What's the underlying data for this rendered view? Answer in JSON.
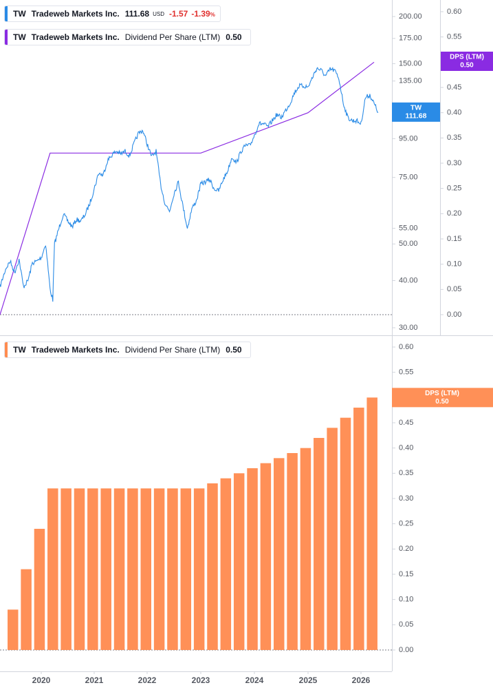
{
  "legend_price": {
    "symbol": "TW",
    "name": "Tradeweb Markets Inc.",
    "price": "111.68",
    "currency": "USD",
    "change": "-1.57",
    "change_pct": "-1.39",
    "pct_sign": "%",
    "color": "#2a8be6"
  },
  "legend_dps_top": {
    "symbol": "TW",
    "name": "Tradeweb Markets Inc.",
    "metric": "Dividend Per Share (LTM)",
    "value": "0.50",
    "color": "#8a2be2"
  },
  "legend_dps_bottom": {
    "symbol": "TW",
    "name": "Tradeweb Markets Inc.",
    "metric": "Dividend Per Share (LTM)",
    "value": "0.50",
    "color": "#ff8c50"
  },
  "badges": {
    "price_symbol": "TW",
    "price_value": "111.68",
    "dps_top_title": "DPS (LTM)",
    "dps_top_value": "0.50",
    "dps_bottom_title": "DPS (LTM)",
    "dps_bottom_value": "0.50"
  },
  "colors": {
    "price_line": "#2a8be6",
    "dps_line": "#8a2be2",
    "bars": "#ff9057",
    "axis_text": "#545861",
    "grid_line": "#d1d4dc",
    "zero_line": "#787b86"
  },
  "chart_data": [
    {
      "type": "line",
      "name": "Tradeweb Markets Inc.",
      "y_scale": "log",
      "ylim": [
        29,
        230
      ],
      "y_ticks": [
        "200.00",
        "175.00",
        "150.00",
        "135.00",
        "95.00",
        "75.00",
        "55.00",
        "50.00",
        "40.00",
        "30.00"
      ],
      "x_ticks": [
        "2020",
        "2021",
        "2022",
        "2023",
        "2024",
        "2025",
        "2026"
      ],
      "points": [
        [
          "2019-04",
          38.5
        ],
        [
          "2019-05",
          43.0
        ],
        [
          "2019-06",
          45.0
        ],
        [
          "2019-07",
          42.0
        ],
        [
          "2019-08",
          45.5
        ],
        [
          "2019-09",
          38.5
        ],
        [
          "2019-10",
          40.0
        ],
        [
          "2019-11",
          44.5
        ],
        [
          "2019-12",
          45.0
        ],
        [
          "2020-01",
          46.0
        ],
        [
          "2020-02",
          50.0
        ],
        [
          "2020-03",
          38.0
        ],
        [
          "2020-03-20",
          35.5
        ],
        [
          "2020-04",
          50.0
        ],
        [
          "2020-05",
          55.0
        ],
        [
          "2020-06",
          60.0
        ],
        [
          "2020-07",
          57.5
        ],
        [
          "2020-08",
          55.5
        ],
        [
          "2020-09",
          58.0
        ],
        [
          "2020-10",
          57.5
        ],
        [
          "2020-11",
          60.0
        ],
        [
          "2020-12",
          64.0
        ],
        [
          "2021-01",
          70.0
        ],
        [
          "2021-02",
          77.0
        ],
        [
          "2021-03",
          76.0
        ],
        [
          "2021-04",
          83.0
        ],
        [
          "2021-05",
          86.0
        ],
        [
          "2021-06",
          88.0
        ],
        [
          "2021-07",
          86.5
        ],
        [
          "2021-08",
          88.0
        ],
        [
          "2021-09",
          85.5
        ],
        [
          "2021-10",
          92.0
        ],
        [
          "2021-11",
          98.0
        ],
        [
          "2021-12",
          100.0
        ],
        [
          "2022-01",
          92.0
        ],
        [
          "2022-02",
          85.0
        ],
        [
          "2022-03",
          88.0
        ],
        [
          "2022-04",
          72.0
        ],
        [
          "2022-05",
          64.0
        ],
        [
          "2022-06",
          61.0
        ],
        [
          "2022-07",
          68.0
        ],
        [
          "2022-08",
          73.0
        ],
        [
          "2022-09",
          63.0
        ],
        [
          "2022-10",
          55.0
        ],
        [
          "2022-11",
          62.0
        ],
        [
          "2022-12",
          65.0
        ],
        [
          "2023-01",
          72.0
        ],
        [
          "2023-02",
          73.0
        ],
        [
          "2023-03",
          74.0
        ],
        [
          "2023-04",
          70.0
        ],
        [
          "2023-05",
          69.0
        ],
        [
          "2023-06",
          74.0
        ],
        [
          "2023-07",
          78.0
        ],
        [
          "2023-08",
          85.0
        ],
        [
          "2023-09",
          82.0
        ],
        [
          "2023-10",
          88.0
        ],
        [
          "2023-11",
          91.0
        ],
        [
          "2023-12",
          91.0
        ],
        [
          "2024-01",
          97.0
        ],
        [
          "2024-02",
          104.0
        ],
        [
          "2024-03",
          104.0
        ],
        [
          "2024-04",
          102.0
        ],
        [
          "2024-05",
          106.0
        ],
        [
          "2024-06",
          110.0
        ],
        [
          "2024-07",
          108.0
        ],
        [
          "2024-08",
          113.0
        ],
        [
          "2024-09",
          118.0
        ],
        [
          "2024-10",
          126.0
        ],
        [
          "2024-11",
          131.0
        ],
        [
          "2024-12",
          131.0
        ],
        [
          "2025-01",
          130.0
        ],
        [
          "2025-02",
          138.0
        ],
        [
          "2025-03",
          146.0
        ],
        [
          "2025-04",
          144.0
        ],
        [
          "2025-05",
          139.0
        ],
        [
          "2025-06",
          145.0
        ],
        [
          "2025-07",
          144.0
        ],
        [
          "2025-08",
          137.0
        ],
        [
          "2025-09",
          118.0
        ],
        [
          "2025-10",
          108.0
        ],
        [
          "2025-11",
          106.0
        ],
        [
          "2025-12",
          106.0
        ],
        [
          "2026-01",
          104.0
        ],
        [
          "2026-02",
          122.0
        ],
        [
          "2026-03",
          124.0
        ],
        [
          "2026-04",
          111.68
        ]
      ]
    },
    {
      "type": "line",
      "name": "Dividend Per Share (LTM)",
      "ylim": [
        -0.03,
        0.63
      ],
      "y_ticks": [
        "0.60",
        "0.55",
        "0.50",
        "0.45",
        "0.40",
        "0.35",
        "0.30",
        "0.25",
        "0.20",
        "0.15",
        "0.10",
        "0.05",
        "0.00"
      ],
      "points": [
        [
          "2019-04",
          0.0
        ],
        [
          "2020-03",
          0.32
        ],
        [
          "2023-01",
          0.32
        ],
        [
          "2025-01",
          0.4
        ],
        [
          "2026-04",
          0.5
        ]
      ]
    },
    {
      "type": "bar",
      "name": "Dividend Per Share (LTM)",
      "ylim": [
        -0.04,
        0.62
      ],
      "y_ticks": [
        "0.60",
        "0.55",
        "0.50",
        "0.45",
        "0.40",
        "0.35",
        "0.30",
        "0.25",
        "0.20",
        "0.15",
        "0.10",
        "0.05",
        "0.00"
      ],
      "x_ticks": [
        "2020",
        "2021",
        "2022",
        "2023",
        "2024",
        "2025",
        "2026"
      ],
      "categories": [
        "2019-Q3",
        "2019-Q4",
        "2020-Q1",
        "2020-Q2",
        "2020-Q3",
        "2020-Q4",
        "2021-Q1",
        "2021-Q2",
        "2021-Q3",
        "2021-Q4",
        "2022-Q1",
        "2022-Q2",
        "2022-Q3",
        "2022-Q4",
        "2023-Q1",
        "2023-Q2",
        "2023-Q3",
        "2023-Q4",
        "2024-Q1",
        "2024-Q2",
        "2024-Q3",
        "2024-Q4",
        "2025-Q1",
        "2025-Q2",
        "2025-Q3",
        "2025-Q4",
        "2026-Q1",
        "2026-Q2"
      ],
      "values": [
        0.08,
        0.16,
        0.24,
        0.32,
        0.32,
        0.32,
        0.32,
        0.32,
        0.32,
        0.32,
        0.32,
        0.32,
        0.32,
        0.32,
        0.32,
        0.33,
        0.34,
        0.35,
        0.36,
        0.37,
        0.38,
        0.39,
        0.4,
        0.42,
        0.44,
        0.46,
        0.48,
        0.5
      ]
    }
  ]
}
